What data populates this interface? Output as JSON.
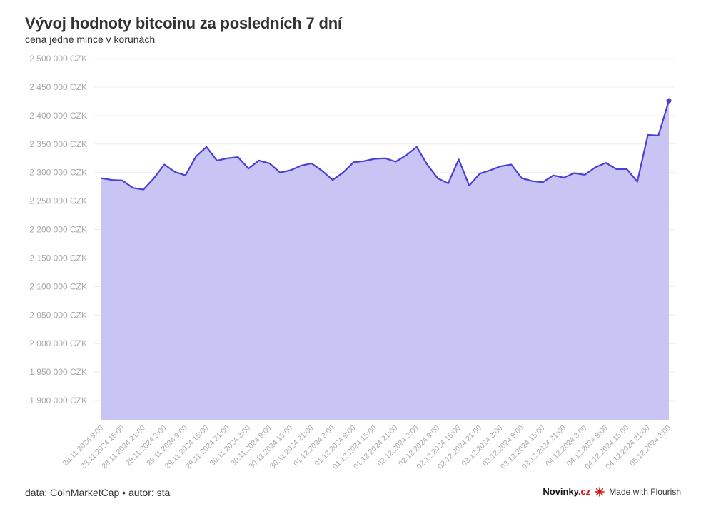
{
  "header": {
    "title": "Vývoj hodnoty bitcoinu za posledních 7 dní",
    "subtitle": "cena jedné mince v korunách"
  },
  "footer": {
    "source": "data: CoinMarketCap • autor: sta",
    "brand_main": "Novinky",
    "brand_suffix": ".cz",
    "flourish": "Made with Flourish"
  },
  "colors": {
    "line": "#4a40d4",
    "area": "#c8c5f5",
    "grid": "#eeeeee",
    "tick_text": "#a8a8a8",
    "brand_accent": "#d10f0f"
  },
  "chart_data": {
    "type": "area",
    "ylim": [
      1865000,
      2500000
    ],
    "y_ticks": [
      1900000,
      1950000,
      2000000,
      2050000,
      2100000,
      2150000,
      2200000,
      2250000,
      2300000,
      2350000,
      2400000,
      2450000,
      2500000
    ],
    "y_tick_labels": [
      "1 900 000 CZK",
      "1 950 000 CZK",
      "2 000 000 CZK",
      "2 050 000 CZK",
      "2 100 000 CZK",
      "2 150 000 CZK",
      "2 200 000 CZK",
      "2 250 000 CZK",
      "2 300 000 CZK",
      "2 350 000 CZK",
      "2 400 000 CZK",
      "2 450 000 CZK",
      "2 500 000 CZK"
    ],
    "x_tick_labels": [
      "28.11.2024 9:00",
      "28.11.2024 15:00",
      "28.11.2024 21:00",
      "29.11.2024 3:00",
      "29.11.2024 9:00",
      "29.11.2024 15:00",
      "29.11.2024 21:00",
      "30.11.2024 3:00",
      "30.11.2024 9:00",
      "30.11.2024 15:00",
      "30.11.2024 21:00",
      "01.12.2024 3:00",
      "01.12.2024 9:00",
      "01.12.2024 15:00",
      "01.12.2024 21:00",
      "02.12.2024 3:00",
      "02.12.2024 9:00",
      "02.12.2024 15:00",
      "02.12.2024 21:00",
      "03.12.2024 3:00",
      "03.12.2024 9:00",
      "03.12.2024 15:00",
      "03.12.2024 21:00",
      "04.12.2024 3:00",
      "04.12.2024 9:00",
      "04.12.2024 15:00",
      "04.12.2024 21:00",
      "05.12.2024 3:00"
    ],
    "values": [
      2290000,
      2287000,
      2286000,
      2273000,
      2270000,
      2290000,
      2314000,
      2301000,
      2295000,
      2328000,
      2345000,
      2321000,
      2325000,
      2327000,
      2307000,
      2321000,
      2316000,
      2300000,
      2304000,
      2312000,
      2316000,
      2303000,
      2287000,
      2300000,
      2318000,
      2320000,
      2324000,
      2325000,
      2319000,
      2330000,
      2345000,
      2314000,
      2290000,
      2281000,
      2323000,
      2277000,
      2298000,
      2304000,
      2311000,
      2314000,
      2290000,
      2285000,
      2283000,
      2295000,
      2291000,
      2299000,
      2296000,
      2309000,
      2317000,
      2306000,
      2306000,
      2284000,
      2366000,
      2365000,
      2426000
    ],
    "grid": true,
    "legend": "none"
  }
}
